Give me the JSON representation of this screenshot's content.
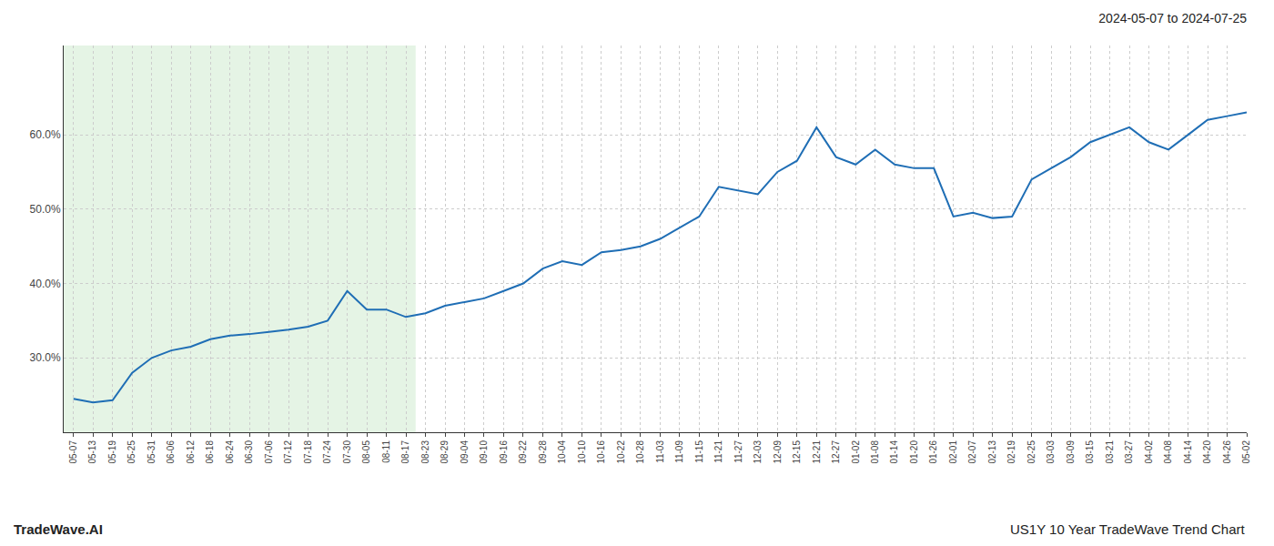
{
  "chart_data": {
    "type": "line",
    "title": "2024-05-07 to 2024-07-25",
    "annotations": [
      "TradeWave.AI",
      "US1Y 10 Year TradeWave Trend Chart"
    ],
    "categories": [
      "05-07",
      "05-13",
      "05-19",
      "05-25",
      "05-31",
      "06-06",
      "06-12",
      "06-18",
      "06-24",
      "06-30",
      "07-06",
      "07-12",
      "07-18",
      "07-24",
      "07-30",
      "08-05",
      "08-11",
      "08-17",
      "08-23",
      "08-29",
      "09-04",
      "09-10",
      "09-16",
      "09-22",
      "09-28",
      "10-04",
      "10-10",
      "10-16",
      "10-22",
      "10-28",
      "11-03",
      "11-09",
      "11-15",
      "11-21",
      "11-27",
      "12-03",
      "12-09",
      "12-15",
      "12-21",
      "12-27",
      "01-02",
      "01-08",
      "01-14",
      "01-20",
      "01-26",
      "02-01",
      "02-07",
      "02-13",
      "02-19",
      "02-25",
      "03-03",
      "03-09",
      "03-15",
      "03-21",
      "03-27",
      "04-02",
      "04-08",
      "04-14",
      "04-20",
      "04-26",
      "05-02"
    ],
    "values": [
      0.245,
      0.24,
      0.243,
      0.28,
      0.3,
      0.31,
      0.315,
      0.325,
      0.33,
      0.332,
      0.335,
      0.338,
      0.342,
      0.35,
      0.39,
      0.365,
      0.365,
      0.355,
      0.36,
      0.37,
      0.375,
      0.38,
      0.39,
      0.4,
      0.42,
      0.43,
      0.425,
      0.442,
      0.445,
      0.45,
      0.46,
      0.475,
      0.49,
      0.53,
      0.525,
      0.52,
      0.55,
      0.565,
      0.61,
      0.57,
      0.56,
      0.58,
      0.56,
      0.555,
      0.555,
      0.49,
      0.495,
      0.488,
      0.49,
      0.54,
      0.555,
      0.57,
      0.59,
      0.6,
      0.61,
      0.59,
      0.58,
      0.6,
      0.62,
      0.625,
      0.63
    ],
    "color": "#1f6eb5",
    "shade": {
      "categories": [
        "05-07",
        "08-17"
      ],
      "color": "#d4ecd4"
    },
    "ylim": [
      0.2,
      0.72
    ],
    "yticks": [
      {
        "value": 0.3,
        "label": "30.0%"
      },
      {
        "value": 0.4,
        "label": "40.0%"
      },
      {
        "value": 0.5,
        "label": "50.0%"
      },
      {
        "value": 0.6,
        "label": "60.0%"
      }
    ],
    "grid": true
  }
}
